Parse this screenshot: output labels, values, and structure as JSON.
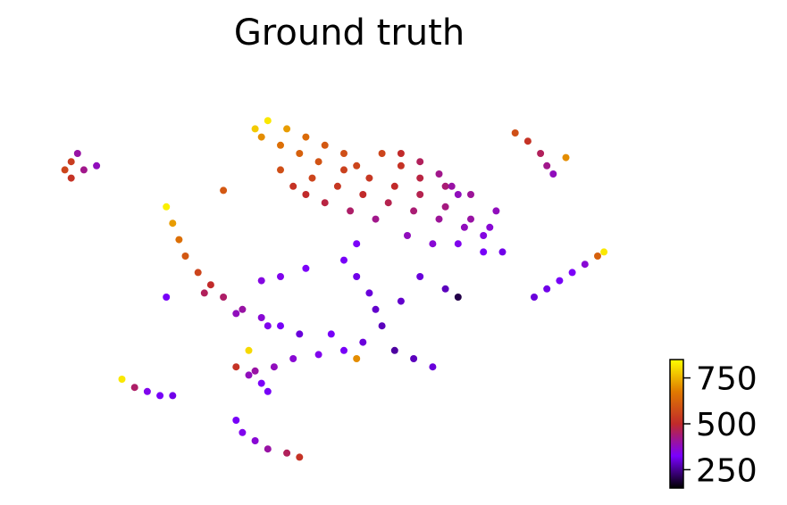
{
  "chart_data": {
    "type": "scatter",
    "title": "Ground truth",
    "xlabel": "",
    "ylabel": "",
    "axes_visible": false,
    "grid": false,
    "colormap": "gnuplot",
    "colormap_stops": [
      "#000000",
      "#7a00ff",
      "#c12a2a",
      "#e07a00",
      "#ffff00"
    ],
    "colorbar": {
      "placement": "bottom-right",
      "range": [
        150,
        850
      ],
      "ticks": [
        250,
        500,
        750
      ],
      "tick_labels": [
        "250",
        "500",
        "750"
      ]
    },
    "notes_range": "marker color encodes value; x/y are embedding coordinates in [0,1]",
    "xlim": [
      0,
      1
    ],
    "ylim": [
      0,
      1
    ],
    "clusters": [
      {
        "id": "main-body",
        "points": [
          [
            0.38,
            0.88,
            820
          ],
          [
            0.41,
            0.86,
            720
          ],
          [
            0.44,
            0.84,
            640
          ],
          [
            0.47,
            0.82,
            600
          ],
          [
            0.5,
            0.8,
            580
          ],
          [
            0.52,
            0.77,
            560
          ],
          [
            0.46,
            0.78,
            590
          ],
          [
            0.43,
            0.8,
            620
          ],
          [
            0.4,
            0.82,
            650
          ],
          [
            0.37,
            0.84,
            700
          ],
          [
            0.36,
            0.86,
            780
          ],
          [
            0.45,
            0.74,
            560
          ],
          [
            0.49,
            0.72,
            530
          ],
          [
            0.53,
            0.7,
            500
          ],
          [
            0.57,
            0.68,
            470
          ],
          [
            0.61,
            0.66,
            440
          ],
          [
            0.65,
            0.64,
            410
          ],
          [
            0.69,
            0.62,
            380
          ],
          [
            0.72,
            0.6,
            350
          ],
          [
            0.7,
            0.64,
            400
          ],
          [
            0.66,
            0.67,
            430
          ],
          [
            0.62,
            0.7,
            470
          ],
          [
            0.58,
            0.72,
            500
          ],
          [
            0.54,
            0.74,
            530
          ],
          [
            0.5,
            0.76,
            550
          ],
          [
            0.55,
            0.64,
            420
          ],
          [
            0.6,
            0.6,
            380
          ],
          [
            0.64,
            0.58,
            360
          ],
          [
            0.68,
            0.58,
            340
          ],
          [
            0.72,
            0.56,
            320
          ],
          [
            0.75,
            0.56,
            310
          ],
          [
            0.51,
            0.66,
            450
          ],
          [
            0.47,
            0.68,
            480
          ],
          [
            0.44,
            0.7,
            500
          ],
          [
            0.42,
            0.72,
            520
          ],
          [
            0.4,
            0.76,
            580
          ],
          [
            0.56,
            0.8,
            560
          ],
          [
            0.59,
            0.77,
            520
          ],
          [
            0.62,
            0.74,
            480
          ],
          [
            0.66,
            0.72,
            440
          ],
          [
            0.7,
            0.7,
            410
          ],
          [
            0.74,
            0.66,
            380
          ],
          [
            0.73,
            0.62,
            360
          ]
        ]
      },
      {
        "id": "left-arc",
        "points": [
          [
            0.22,
            0.67,
            830
          ],
          [
            0.23,
            0.63,
            720
          ],
          [
            0.24,
            0.59,
            650
          ],
          [
            0.25,
            0.55,
            600
          ],
          [
            0.27,
            0.51,
            560
          ],
          [
            0.29,
            0.48,
            500
          ],
          [
            0.31,
            0.45,
            450
          ],
          [
            0.34,
            0.42,
            400
          ],
          [
            0.37,
            0.4,
            360
          ],
          [
            0.4,
            0.38,
            320
          ],
          [
            0.43,
            0.36,
            300
          ],
          [
            0.28,
            0.46,
            460
          ],
          [
            0.33,
            0.41,
            380
          ],
          [
            0.38,
            0.38,
            340
          ]
        ]
      },
      {
        "id": "center-branches",
        "points": [
          [
            0.52,
            0.58,
            330
          ],
          [
            0.5,
            0.54,
            320
          ],
          [
            0.52,
            0.5,
            310
          ],
          [
            0.54,
            0.46,
            300
          ],
          [
            0.55,
            0.42,
            290
          ],
          [
            0.56,
            0.38,
            280
          ],
          [
            0.53,
            0.34,
            300
          ],
          [
            0.5,
            0.32,
            320
          ],
          [
            0.46,
            0.31,
            340
          ],
          [
            0.42,
            0.3,
            360
          ],
          [
            0.39,
            0.28,
            380
          ],
          [
            0.36,
            0.27,
            400
          ],
          [
            0.58,
            0.32,
            260
          ],
          [
            0.61,
            0.3,
            280
          ],
          [
            0.64,
            0.28,
            300
          ],
          [
            0.44,
            0.52,
            330
          ],
          [
            0.4,
            0.5,
            340
          ],
          [
            0.37,
            0.49,
            350
          ],
          [
            0.62,
            0.5,
            300
          ],
          [
            0.66,
            0.47,
            280
          ],
          [
            0.68,
            0.45,
            200
          ],
          [
            0.48,
            0.36,
            320
          ],
          [
            0.59,
            0.44,
            290
          ]
        ]
      },
      {
        "id": "top-left-loop",
        "points": [
          [
            0.07,
            0.78,
            540
          ],
          [
            0.06,
            0.76,
            560
          ],
          [
            0.07,
            0.74,
            520
          ],
          [
            0.09,
            0.76,
            420
          ],
          [
            0.11,
            0.77,
            380
          ],
          [
            0.08,
            0.8,
            400
          ]
        ]
      },
      {
        "id": "top-right-hook",
        "points": [
          [
            0.77,
            0.85,
            580
          ],
          [
            0.79,
            0.83,
            520
          ],
          [
            0.81,
            0.8,
            460
          ],
          [
            0.82,
            0.77,
            420
          ],
          [
            0.83,
            0.75,
            380
          ],
          [
            0.85,
            0.79,
            700
          ]
        ]
      },
      {
        "id": "right-streak",
        "points": [
          [
            0.8,
            0.45,
            300
          ],
          [
            0.82,
            0.47,
            310
          ],
          [
            0.84,
            0.49,
            320
          ],
          [
            0.86,
            0.51,
            330
          ],
          [
            0.88,
            0.53,
            360
          ],
          [
            0.9,
            0.55,
            620
          ],
          [
            0.91,
            0.56,
            820
          ]
        ]
      },
      {
        "id": "top-right-arc",
        "points": [
          [
            0.59,
            0.8,
            500
          ],
          [
            0.62,
            0.78,
            460
          ],
          [
            0.65,
            0.75,
            420
          ],
          [
            0.67,
            0.72,
            400
          ],
          [
            0.68,
            0.7,
            380
          ]
        ]
      },
      {
        "id": "bottom-left-streak",
        "points": [
          [
            0.15,
            0.25,
            820
          ],
          [
            0.17,
            0.23,
            450
          ],
          [
            0.19,
            0.22,
            340
          ],
          [
            0.21,
            0.21,
            320
          ],
          [
            0.23,
            0.21,
            310
          ]
        ]
      },
      {
        "id": "bottom-arc",
        "points": [
          [
            0.33,
            0.15,
            320
          ],
          [
            0.34,
            0.12,
            340
          ],
          [
            0.36,
            0.1,
            360
          ],
          [
            0.38,
            0.08,
            400
          ],
          [
            0.41,
            0.07,
            460
          ],
          [
            0.43,
            0.06,
            520
          ]
        ]
      },
      {
        "id": "small-loop",
        "points": [
          [
            0.33,
            0.28,
            520
          ],
          [
            0.35,
            0.26,
            380
          ],
          [
            0.37,
            0.24,
            330
          ],
          [
            0.38,
            0.22,
            320
          ]
        ]
      },
      {
        "id": "stray",
        "points": [
          [
            0.31,
            0.71,
            600
          ],
          [
            0.22,
            0.45,
            320
          ],
          [
            0.35,
            0.32,
            800
          ],
          [
            0.52,
            0.3,
            700
          ]
        ]
      }
    ]
  }
}
